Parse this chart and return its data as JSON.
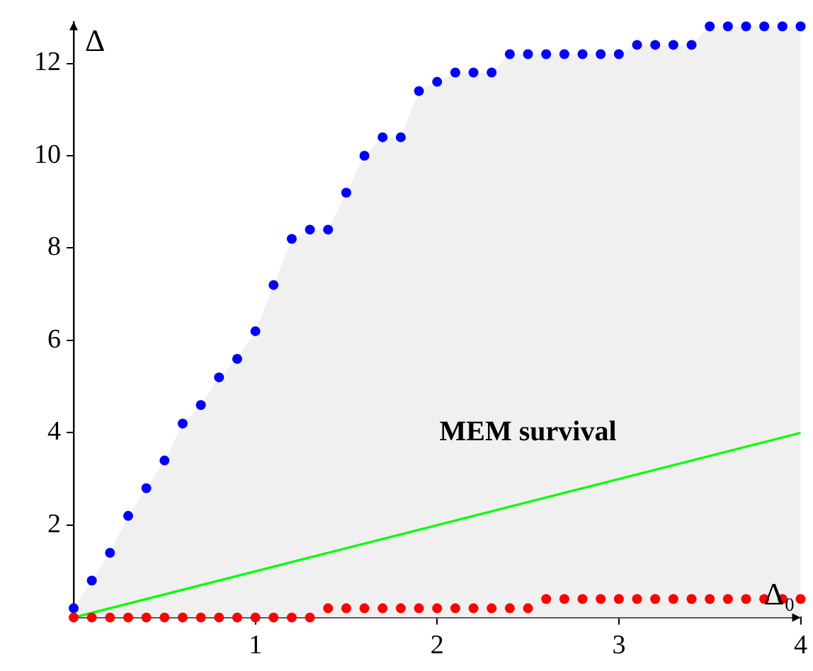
{
  "chart_data": {
    "type": "scatter",
    "xlabel": "Δ₀",
    "ylabel": "Δ",
    "xlim": [
      0,
      4
    ],
    "ylim": [
      0,
      12.9
    ],
    "xticks": [
      1,
      2,
      3,
      4
    ],
    "yticks": [
      2,
      4,
      6,
      8,
      10,
      12
    ],
    "grid": false,
    "legend": false,
    "x": [
      0,
      0.1,
      0.2,
      0.3,
      0.4,
      0.5,
      0.6,
      0.7,
      0.8,
      0.9,
      1.0,
      1.1,
      1.2,
      1.3,
      1.4,
      1.5,
      1.6,
      1.7,
      1.8,
      1.9,
      2.0,
      2.1,
      2.2,
      2.3,
      2.4,
      2.5,
      2.6,
      2.7,
      2.8,
      2.9,
      3.0,
      3.1,
      3.2,
      3.3,
      3.4,
      3.5,
      3.6,
      3.7,
      3.8,
      3.9,
      4.0
    ],
    "series": [
      {
        "type": "area",
        "marker": "circle",
        "color": "#0000ff",
        "values": [
          0.2,
          0.8,
          1.4,
          2.2,
          2.8,
          3.4,
          4.2,
          4.6,
          5.2,
          5.6,
          6.2,
          7.2,
          8.2,
          8.4,
          8.4,
          9.2,
          10.0,
          10.4,
          10.4,
          11.4,
          11.6,
          11.8,
          11.8,
          11.8,
          12.2,
          12.2,
          12.2,
          12.2,
          12.2,
          12.2,
          12.2,
          12.4,
          12.4,
          12.4,
          12.4,
          12.8,
          12.8,
          12.8,
          12.8,
          12.8,
          12.8
        ]
      },
      {
        "marker": "circle",
        "color": "#ff0000",
        "values": [
          0,
          0,
          0,
          0,
          0,
          0,
          0,
          0,
          0,
          0,
          0,
          0,
          0,
          0,
          0.2,
          0.2,
          0.2,
          0.2,
          0.2,
          0.2,
          0.2,
          0.2,
          0.2,
          0.2,
          0.2,
          0.2,
          0.4,
          0.4,
          0.4,
          0.4,
          0.4,
          0.4,
          0.4,
          0.4,
          0.4,
          0.4,
          0.4,
          0.4,
          0.4,
          0.4,
          0.4
        ]
      },
      {
        "type": "line",
        "marker": "none",
        "color": "#00ff00",
        "x": [
          0,
          4
        ],
        "values": [
          0,
          4
        ]
      }
    ],
    "annotations": [
      "MEM survival"
    ]
  }
}
